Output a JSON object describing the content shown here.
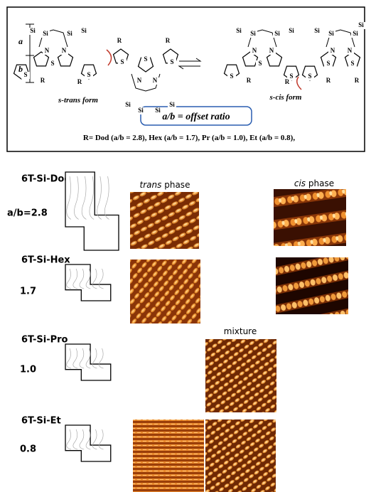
{
  "scheme": {
    "dimension_labels": [
      "a",
      "b"
    ],
    "forms": [
      {
        "label": "s-trans form",
        "atoms": [
          "Si",
          "Si",
          "Si",
          "Si",
          "N",
          "N",
          "S",
          "S",
          "S",
          "R",
          "R",
          "S",
          "S",
          "S",
          "R",
          "R",
          "N",
          "N",
          "Si",
          "Si",
          "Si",
          "Si"
        ]
      },
      {
        "label": "s-cis form",
        "atoms": [
          "Si",
          "Si",
          "Si",
          "Si",
          "N",
          "N",
          "S",
          "S",
          "S",
          "R",
          "R",
          "Si",
          "Si",
          "Si",
          "Si",
          "N",
          "N",
          "S",
          "S",
          "S",
          "R",
          "R"
        ]
      }
    ],
    "ratio_label": "a/b = offset ratio",
    "substituents": "R= Dod (a/b = 2.8), Hex (a/b = 1.7), Pr (a/b = 1.0), Et (a/b = 0.8),"
  },
  "column_headers": [
    {
      "italic": "trans",
      "rest": "phase"
    },
    {
      "italic": "cis",
      "rest": "phase"
    },
    {
      "rest": "mixture"
    }
  ],
  "rows": [
    {
      "name": "6T-Si-Dod",
      "ratio": "a/b=2.8"
    },
    {
      "name": "6T-Si-Hex",
      "ratio": "1.7"
    },
    {
      "name": "6T-Si-Pro",
      "ratio": "1.0"
    },
    {
      "name": "6T-Si-Et",
      "ratio": "0.8"
    }
  ]
}
